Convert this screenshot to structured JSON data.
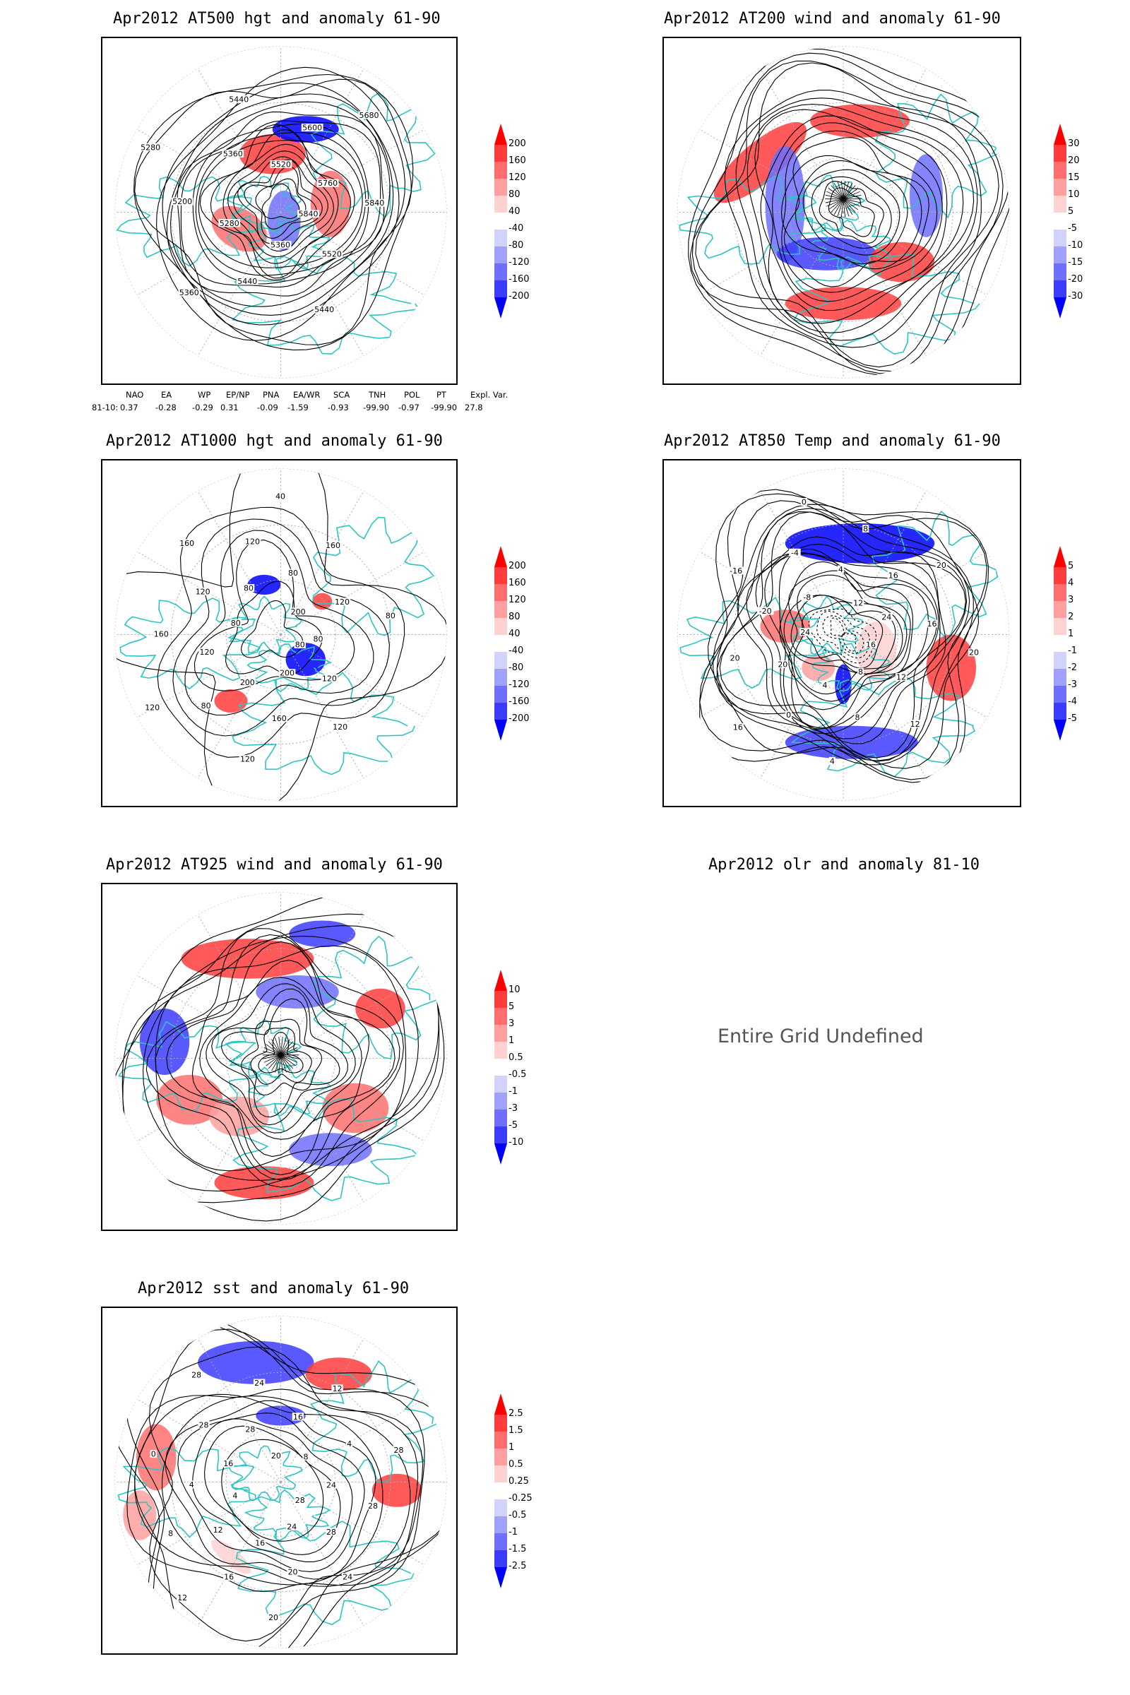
{
  "panels": {
    "z500": {
      "title": "Apr2012 AT500 hgt and anomaly 61-90",
      "colorbar_labels": [
        "200",
        "160",
        "120",
        "80",
        "40",
        "-40",
        "-80",
        "-120",
        "-160",
        "-200"
      ],
      "contour_labels": [
        "5840",
        "5520",
        "5440",
        "5360",
        "5440",
        "5360",
        "5280",
        "5200",
        "5280",
        "5360",
        "5440",
        "5520",
        "5600",
        "5680",
        "5760",
        "5840"
      ],
      "indices": {
        "headers": [
          "NAO",
          "EA",
          "WP",
          "EP/NP",
          "PNA",
          "EA/WR",
          "SCA",
          "TNH",
          "POL",
          "PT",
          "Expl. Var."
        ],
        "row_label": "81-10:",
        "values": [
          "0.37",
          "-0.28",
          "-0.29",
          "0.31",
          "-0.09",
          "-1.59",
          "-0.93",
          "-99.90",
          "-0.97",
          "-99.90",
          "27.8"
        ]
      }
    },
    "wind200": {
      "title": "Apr2012 AT200 wind and anomaly 61-90",
      "colorbar_labels": [
        "30",
        "20",
        "15",
        "10",
        "5",
        "-5",
        "-10",
        "-15",
        "-20",
        "-30"
      ]
    },
    "z1000": {
      "title": "Apr2012 AT1000 hgt and anomaly 61-90",
      "colorbar_labels": [
        "200",
        "160",
        "120",
        "80",
        "40",
        "-40",
        "-80",
        "-120",
        "-160",
        "-200"
      ],
      "contour_labels": [
        "80",
        "120",
        "120",
        "200",
        "160",
        "120",
        "200",
        "80",
        "120",
        "120",
        "160",
        "80",
        "120",
        "160",
        "80",
        "120",
        "40",
        "80",
        "160",
        "200",
        "120",
        "80",
        "80"
      ]
    },
    "t850": {
      "title": "Apr2012 AT850 Temp and anomaly 61-90",
      "colorbar_labels": [
        "5",
        "4",
        "3",
        "2",
        "1",
        "-1",
        "-2",
        "-3",
        "-4",
        "-5"
      ],
      "contour_labels": [
        "16",
        "12",
        "12",
        "8",
        "8",
        "4",
        "4",
        "0",
        "16",
        "20",
        "20",
        "24",
        "-20",
        "-16",
        "-8",
        "-4",
        "0",
        "4",
        "8",
        "12",
        "16",
        "20",
        "24",
        "16",
        "20"
      ]
    },
    "wind925": {
      "title": "Apr2012 AT925 wind and anomaly 61-90",
      "colorbar_labels": [
        "10",
        "5",
        "3",
        "1",
        "0.5",
        "-0.5",
        "-1",
        "-3",
        "-5",
        "-10"
      ]
    },
    "olr": {
      "title": "Apr2012 olr and anomaly 81-10",
      "message": "Entire Grid Undefined"
    },
    "sst": {
      "title": "Apr2012 sst and anomaly 61-90",
      "colorbar_labels": [
        "2.5",
        "1.5",
        "1",
        "0.5",
        "0.25",
        "-0.25",
        "-0.5",
        "-1",
        "-1.5",
        "-2.5"
      ],
      "contour_labels": [
        "28",
        "28",
        "24",
        "24",
        "20",
        "20",
        "16",
        "16",
        "12",
        "12",
        "8",
        "4",
        "4",
        "0",
        "16",
        "28",
        "28",
        "28",
        "24",
        "20",
        "16",
        "12",
        "8",
        "4",
        "28",
        "24",
        "28"
      ]
    }
  },
  "colors": {
    "coast": "#2ec4c4",
    "contour": "#000000",
    "grid": "#aaaaaa",
    "pos_scale": [
      "#ff0000",
      "#ff3c3c",
      "#ff6e6e",
      "#ffa0a0",
      "#ffd2d2"
    ],
    "neg_scale": [
      "#d2d2ff",
      "#a0a0ff",
      "#6e6eff",
      "#3c3cff",
      "#0000ff"
    ]
  }
}
